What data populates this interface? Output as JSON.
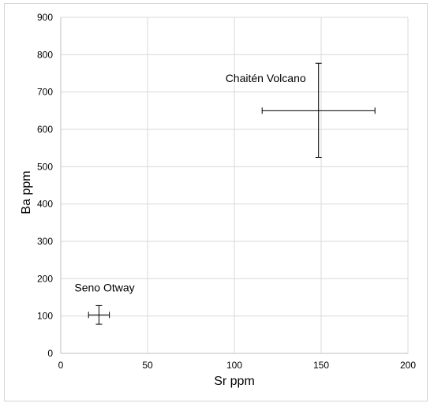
{
  "chart_data": {
    "type": "scatter",
    "title": "",
    "xlabel": "Sr ppm",
    "ylabel": "Ba ppm",
    "xlim": [
      0,
      200
    ],
    "ylim": [
      0,
      900
    ],
    "xticks": [
      0,
      50,
      100,
      150,
      200
    ],
    "yticks": [
      0,
      100,
      200,
      300,
      400,
      500,
      600,
      700,
      800,
      900
    ],
    "grid": true,
    "legend": "none",
    "points": [
      {
        "label": "Chaitén Volcano",
        "x": 148.5,
        "y": 650,
        "x_err": [
          116,
          181
        ],
        "y_err": [
          525,
          777
        ]
      },
      {
        "label": "Seno Otway",
        "x": 22,
        "y": 103,
        "x_err": [
          16,
          28
        ],
        "y_err": [
          78,
          128
        ]
      }
    ],
    "colors": {
      "marker": "#000000",
      "grid": "#d9d9d9",
      "axis": "#bfbfbf"
    }
  }
}
